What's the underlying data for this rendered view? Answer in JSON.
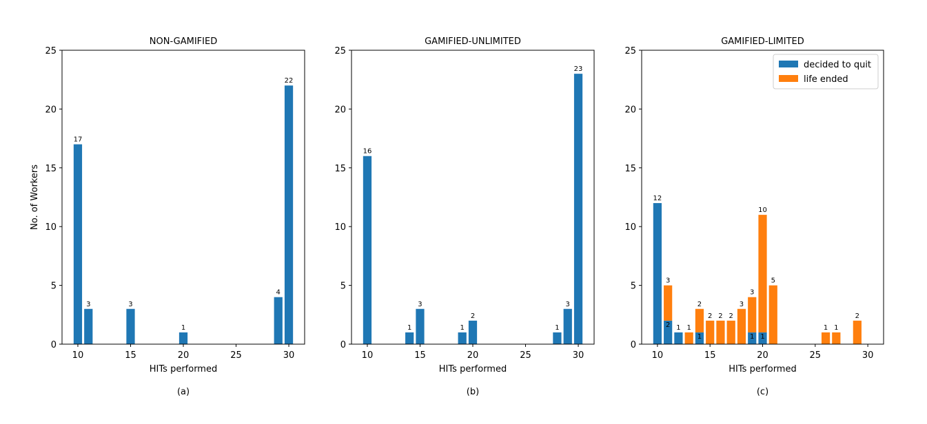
{
  "chart_data": [
    {
      "type": "bar",
      "title": "NON-GAMIFIED",
      "caption": "(a)",
      "xlabel": "HITs performed",
      "ylabel": "No. of Workers",
      "xlim": [
        8.5,
        31.5
      ],
      "ylim": [
        0,
        25
      ],
      "xticks": [
        10,
        15,
        20,
        25,
        30
      ],
      "yticks": [
        0,
        5,
        10,
        15,
        20,
        25
      ],
      "series": [
        {
          "color": "#1f77b4",
          "x": [
            10,
            11,
            15,
            20,
            29,
            30
          ],
          "values": [
            17,
            3,
            3,
            1,
            4,
            22
          ]
        }
      ],
      "labels": [
        {
          "x": 10,
          "text": "17"
        },
        {
          "x": 11,
          "text": "3"
        },
        {
          "x": 15,
          "text": "3"
        },
        {
          "x": 20,
          "text": "1"
        },
        {
          "x": 29,
          "text": "4"
        },
        {
          "x": 30,
          "text": "22"
        }
      ]
    },
    {
      "type": "bar",
      "title": "GAMIFIED-UNLIMITED",
      "caption": "(b)",
      "xlabel": "HITs performed",
      "ylabel": "",
      "xlim": [
        8.5,
        31.5
      ],
      "ylim": [
        0,
        25
      ],
      "xticks": [
        10,
        15,
        20,
        25,
        30
      ],
      "yticks": [
        0,
        5,
        10,
        15,
        20,
        25
      ],
      "series": [
        {
          "color": "#1f77b4",
          "x": [
            10,
            14,
            15,
            19,
            20,
            28,
            29,
            30
          ],
          "values": [
            16,
            1,
            3,
            1,
            2,
            1,
            3,
            23
          ]
        }
      ],
      "labels": [
        {
          "x": 10,
          "text": "16"
        },
        {
          "x": 14,
          "text": "1"
        },
        {
          "x": 15,
          "text": "3"
        },
        {
          "x": 19,
          "text": "1"
        },
        {
          "x": 20,
          "text": "2"
        },
        {
          "x": 28,
          "text": "1"
        },
        {
          "x": 29,
          "text": "3"
        },
        {
          "x": 30,
          "text": "23"
        }
      ]
    },
    {
      "type": "bar",
      "title": "GAMIFIED-LIMITED",
      "caption": "(c)",
      "xlabel": "HITs performed",
      "ylabel": "",
      "xlim": [
        8.5,
        31.5
      ],
      "ylim": [
        0,
        25
      ],
      "xticks": [
        10,
        15,
        20,
        25,
        30
      ],
      "yticks": [
        0,
        5,
        10,
        15,
        20,
        25
      ],
      "legend": "top-right",
      "series": [
        {
          "name": "decided to quit",
          "color": "#1f77b4",
          "x": [
            10,
            11,
            12,
            14,
            19,
            20
          ],
          "values": [
            12,
            2,
            1,
            1,
            1,
            1
          ]
        },
        {
          "name": "life ended",
          "color": "#ff7f0e",
          "x": [
            11,
            13,
            14,
            15,
            16,
            17,
            18,
            19,
            20,
            21,
            26,
            27,
            29
          ],
          "values": [
            3,
            1,
            2,
            2,
            2,
            2,
            3,
            3,
            10,
            5,
            1,
            1,
            2
          ]
        }
      ],
      "labels": [
        {
          "x": 10,
          "text": "12"
        },
        {
          "x": 11,
          "text": "3"
        },
        {
          "x": 11,
          "text": "2",
          "inner": true
        },
        {
          "x": 12,
          "text": "1"
        },
        {
          "x": 13,
          "text": "1"
        },
        {
          "x": 14,
          "text": "2"
        },
        {
          "x": 14,
          "text": "1",
          "inner": true
        },
        {
          "x": 15,
          "text": "2"
        },
        {
          "x": 16,
          "text": "2"
        },
        {
          "x": 17,
          "text": "2"
        },
        {
          "x": 18,
          "text": "3"
        },
        {
          "x": 19,
          "text": "3"
        },
        {
          "x": 19,
          "text": "1",
          "inner": true
        },
        {
          "x": 20,
          "text": "10"
        },
        {
          "x": 20,
          "text": "1",
          "inner": true
        },
        {
          "x": 21,
          "text": "5"
        },
        {
          "x": 26,
          "text": "1"
        },
        {
          "x": 27,
          "text": "1"
        },
        {
          "x": 29,
          "text": "2"
        }
      ]
    }
  ]
}
